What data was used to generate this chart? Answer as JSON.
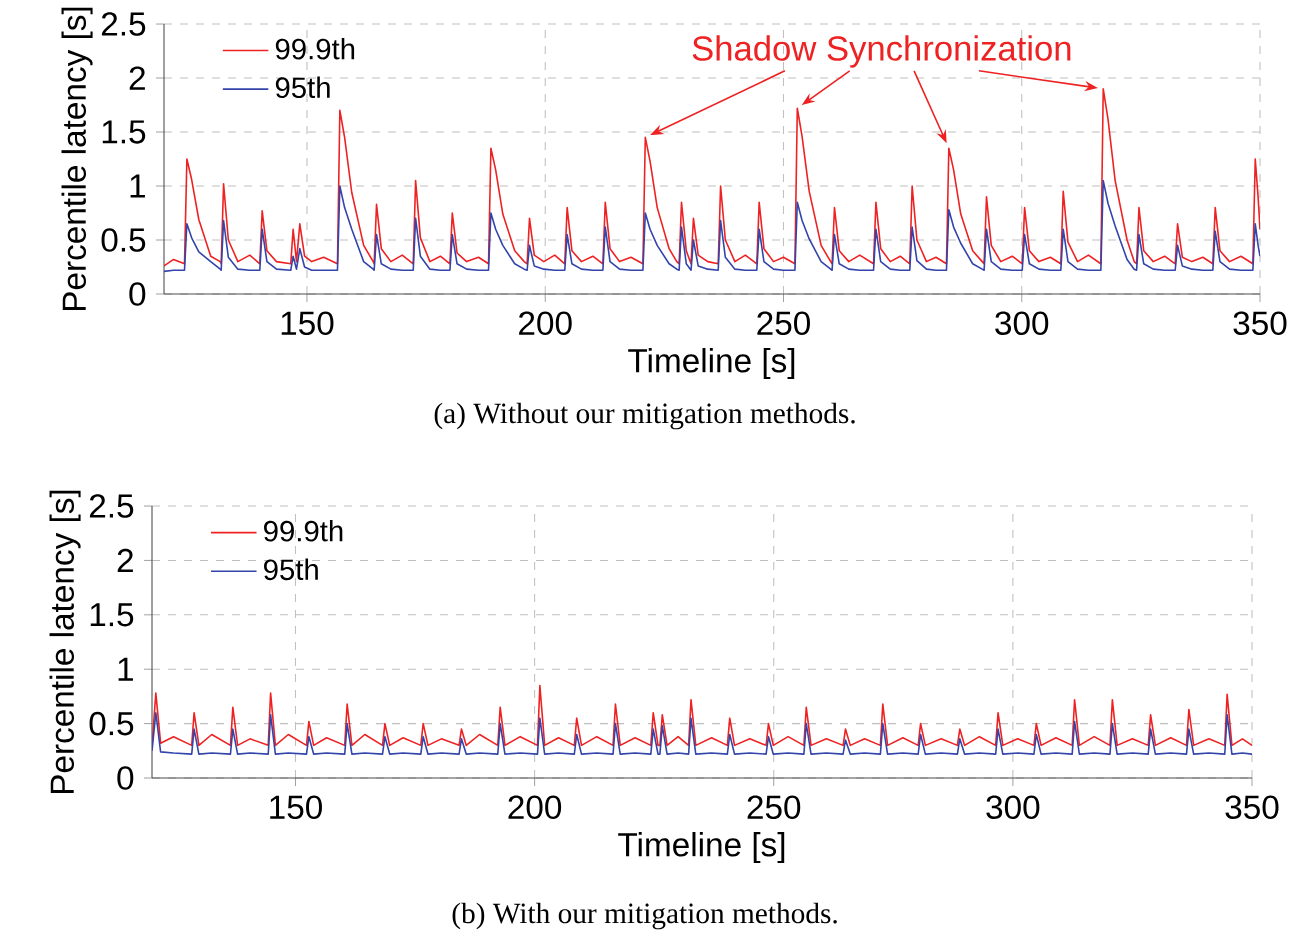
{
  "chart_data": [
    {
      "type": "line",
      "title": "(a)  Without our mitigation methods.",
      "xlabel": "Timeline [s]",
      "ylabel": "Percentile latency [s]",
      "xlim": [
        120,
        350
      ],
      "ylim": [
        0,
        2.5
      ],
      "xticks": [
        150,
        200,
        250,
        300,
        350
      ],
      "yticks": [
        0,
        0.5,
        1,
        1.5,
        2,
        2.5
      ],
      "grid": true,
      "legend": "top left",
      "annotations": [
        "Shadow Synchronization"
      ],
      "x": [
        120,
        122,
        124.3,
        124.8,
        125.8,
        127.3,
        129.8,
        131.8,
        132.0,
        132.5,
        133.5,
        135.5,
        138,
        140.1,
        140.6,
        141.6,
        143.6,
        146.6,
        147.1,
        147.8,
        148.5,
        149.5,
        151,
        153.5,
        156.4,
        156.9,
        157.9,
        159.4,
        161.9,
        163.9,
        164.1,
        164.6,
        165.6,
        167.6,
        170,
        172.3,
        172.8,
        173.8,
        175.8,
        178,
        180.0,
        180.5,
        181.5,
        183.5,
        186,
        188.1,
        188.6,
        189.6,
        191.1,
        193.6,
        195.6,
        196.2,
        196.7,
        197.7,
        199.7,
        202,
        204.1,
        204.6,
        205.6,
        207.6,
        210,
        212.1,
        212.6,
        213.6,
        215.6,
        218,
        220.5,
        221.0,
        222.0,
        223.5,
        226,
        227.6,
        228.1,
        228.6,
        229.6,
        230.6,
        231.1,
        232.1,
        234.1,
        236.3,
        236.8,
        237.8,
        239.8,
        242,
        244.4,
        244.9,
        245.9,
        247.9,
        250,
        252.4,
        252.9,
        253.9,
        255.4,
        257.9,
        259.9,
        260.2,
        260.7,
        261.7,
        263.7,
        266,
        268.9,
        269.4,
        270.4,
        272.4,
        274.5,
        276.5,
        277.0,
        278.0,
        280.0,
        282,
        284.2,
        284.7,
        285.7,
        287.2,
        289.7,
        291.7,
        292.1,
        292.6,
        293.6,
        295.6,
        298,
        300.1,
        300.6,
        301.6,
        303.6,
        306,
        308.2,
        308.7,
        309.7,
        311.7,
        314,
        316.6,
        317.1,
        318.1,
        319.6,
        322.1,
        323.6,
        324.1,
        324.6,
        325.6,
        327.6,
        330,
        332.2,
        332.7,
        333.7,
        335.7,
        338,
        340.1,
        340.6,
        341.6,
        343.6,
        346,
        348.5,
        349.0,
        349.6,
        350
      ],
      "series": [
        {
          "name": "99.9th",
          "color": "#ee2222",
          "values": [
            0.26,
            0.32,
            0.28,
            1.25,
            1.06,
            0.69,
            0.35,
            0.3,
            0.28,
            1.02,
            0.5,
            0.3,
            0.36,
            0.28,
            0.77,
            0.4,
            0.3,
            0.28,
            0.6,
            0.3,
            0.65,
            0.35,
            0.3,
            0.34,
            0.28,
            1.7,
            1.45,
            0.94,
            0.45,
            0.3,
            0.28,
            0.83,
            0.42,
            0.3,
            0.36,
            0.28,
            1.05,
            0.52,
            0.3,
            0.35,
            0.28,
            0.75,
            0.38,
            0.3,
            0.34,
            0.28,
            1.35,
            1.15,
            0.74,
            0.4,
            0.3,
            0.28,
            0.7,
            0.36,
            0.3,
            0.36,
            0.28,
            0.8,
            0.4,
            0.3,
            0.35,
            0.28,
            0.85,
            0.42,
            0.3,
            0.34,
            0.28,
            1.45,
            1.23,
            0.8,
            0.42,
            0.3,
            0.28,
            0.85,
            0.4,
            0.28,
            0.7,
            0.36,
            0.3,
            0.28,
            1.0,
            0.5,
            0.3,
            0.36,
            0.28,
            0.85,
            0.42,
            0.3,
            0.34,
            0.28,
            1.72,
            1.46,
            0.95,
            0.45,
            0.3,
            0.28,
            0.8,
            0.4,
            0.3,
            0.36,
            0.28,
            0.85,
            0.42,
            0.3,
            0.35,
            0.28,
            1.0,
            0.5,
            0.3,
            0.34,
            0.28,
            1.35,
            1.15,
            0.74,
            0.4,
            0.3,
            0.28,
            0.9,
            0.45,
            0.3,
            0.35,
            0.28,
            0.8,
            0.4,
            0.3,
            0.34,
            0.28,
            0.95,
            0.48,
            0.3,
            0.36,
            0.28,
            1.9,
            1.62,
            1.05,
            0.5,
            0.3,
            0.28,
            0.8,
            0.4,
            0.3,
            0.35,
            0.28,
            0.65,
            0.34,
            0.3,
            0.34,
            0.28,
            0.8,
            0.4,
            0.3,
            0.35,
            0.28,
            1.25,
            0.9,
            0.6
          ]
        },
        {
          "name": "95th",
          "color": "#3344aa",
          "values": [
            0.21,
            0.22,
            0.22,
            0.65,
            0.52,
            0.39,
            0.3,
            0.23,
            0.22,
            0.68,
            0.34,
            0.23,
            0.22,
            0.22,
            0.6,
            0.3,
            0.23,
            0.22,
            0.35,
            0.23,
            0.42,
            0.25,
            0.22,
            0.22,
            0.22,
            1.0,
            0.8,
            0.6,
            0.3,
            0.23,
            0.22,
            0.55,
            0.28,
            0.23,
            0.22,
            0.22,
            0.7,
            0.35,
            0.23,
            0.22,
            0.22,
            0.55,
            0.28,
            0.23,
            0.22,
            0.22,
            0.75,
            0.6,
            0.45,
            0.28,
            0.23,
            0.22,
            0.45,
            0.26,
            0.23,
            0.22,
            0.22,
            0.55,
            0.28,
            0.23,
            0.22,
            0.22,
            0.62,
            0.3,
            0.23,
            0.22,
            0.22,
            0.75,
            0.6,
            0.45,
            0.28,
            0.23,
            0.22,
            0.62,
            0.28,
            0.22,
            0.5,
            0.26,
            0.23,
            0.22,
            0.68,
            0.34,
            0.23,
            0.22,
            0.22,
            0.6,
            0.3,
            0.23,
            0.22,
            0.22,
            0.85,
            0.68,
            0.51,
            0.3,
            0.23,
            0.22,
            0.55,
            0.28,
            0.23,
            0.22,
            0.22,
            0.6,
            0.3,
            0.23,
            0.22,
            0.22,
            0.62,
            0.31,
            0.23,
            0.22,
            0.22,
            0.78,
            0.62,
            0.47,
            0.28,
            0.23,
            0.22,
            0.6,
            0.3,
            0.23,
            0.22,
            0.22,
            0.55,
            0.28,
            0.23,
            0.22,
            0.22,
            0.6,
            0.3,
            0.23,
            0.22,
            0.22,
            1.05,
            0.84,
            0.63,
            0.32,
            0.23,
            0.22,
            0.55,
            0.28,
            0.23,
            0.22,
            0.22,
            0.45,
            0.26,
            0.23,
            0.22,
            0.22,
            0.58,
            0.3,
            0.23,
            0.22,
            0.22,
            0.65,
            0.45,
            0.35
          ]
        }
      ]
    },
    {
      "type": "line",
      "title": "(b)  With our mitigation methods.",
      "xlabel": "Timeline [s]",
      "ylabel": "Percentile latency [s]",
      "xlim": [
        120,
        350
      ],
      "ylim": [
        0,
        2.5
      ],
      "xticks": [
        150,
        200,
        250,
        300,
        350
      ],
      "yticks": [
        0,
        0.5,
        1,
        1.5,
        2,
        2.5
      ],
      "grid": true,
      "legend": "top left",
      "x": [
        120,
        120.8,
        121.8,
        124.5,
        128.3,
        128.8,
        129.8,
        132.5,
        136.4,
        136.9,
        137.9,
        140.5,
        144.3,
        144.8,
        145.8,
        148.5,
        152.3,
        152.8,
        153.8,
        156.5,
        160.3,
        160.8,
        161.8,
        164.5,
        168.2,
        168.7,
        169.7,
        172.5,
        176.2,
        176.7,
        177.7,
        180.5,
        184.2,
        184.7,
        185.7,
        188.5,
        192.3,
        192.8,
        193.8,
        197,
        200.6,
        201.1,
        202.1,
        205,
        208.3,
        208.8,
        209.8,
        213,
        216.4,
        216.9,
        217.9,
        221,
        224.3,
        224.8,
        225.8,
        226.2,
        226.7,
        227.7,
        230,
        232.2,
        232.7,
        233.7,
        237,
        240.3,
        240.8,
        241.8,
        245,
        248.4,
        248.9,
        249.9,
        253,
        256.3,
        256.8,
        257.8,
        261,
        264.5,
        265.0,
        266.0,
        269,
        272.3,
        272.8,
        273.8,
        277,
        280.2,
        280.7,
        281.7,
        285,
        288.4,
        288.9,
        289.9,
        293,
        296.4,
        296.9,
        297.9,
        301,
        304.4,
        304.9,
        305.9,
        309,
        312.4,
        312.9,
        313.9,
        317,
        320.3,
        320.8,
        321.8,
        325,
        328.3,
        328.8,
        329.8,
        333,
        336.3,
        336.8,
        337.8,
        341,
        344.3,
        344.8,
        345.8,
        348,
        350
      ],
      "series": [
        {
          "name": "99.9th",
          "color": "#ee2222",
          "values": [
            0.3,
            0.78,
            0.32,
            0.38,
            0.3,
            0.6,
            0.3,
            0.4,
            0.3,
            0.65,
            0.3,
            0.36,
            0.3,
            0.78,
            0.3,
            0.4,
            0.3,
            0.52,
            0.3,
            0.37,
            0.3,
            0.68,
            0.3,
            0.4,
            0.3,
            0.5,
            0.3,
            0.37,
            0.3,
            0.5,
            0.3,
            0.36,
            0.3,
            0.45,
            0.3,
            0.4,
            0.3,
            0.65,
            0.3,
            0.38,
            0.3,
            0.85,
            0.3,
            0.37,
            0.3,
            0.55,
            0.3,
            0.38,
            0.3,
            0.68,
            0.3,
            0.37,
            0.3,
            0.6,
            0.3,
            0.3,
            0.58,
            0.3,
            0.38,
            0.3,
            0.72,
            0.3,
            0.37,
            0.3,
            0.55,
            0.3,
            0.36,
            0.3,
            0.5,
            0.3,
            0.38,
            0.3,
            0.65,
            0.3,
            0.36,
            0.3,
            0.45,
            0.3,
            0.36,
            0.3,
            0.68,
            0.3,
            0.37,
            0.3,
            0.5,
            0.3,
            0.36,
            0.3,
            0.45,
            0.3,
            0.38,
            0.3,
            0.6,
            0.3,
            0.36,
            0.3,
            0.5,
            0.3,
            0.37,
            0.3,
            0.72,
            0.3,
            0.38,
            0.3,
            0.72,
            0.3,
            0.36,
            0.3,
            0.58,
            0.3,
            0.37,
            0.3,
            0.63,
            0.3,
            0.36,
            0.3,
            0.77,
            0.3,
            0.36,
            0.3
          ]
        },
        {
          "name": "95th",
          "color": "#3344aa",
          "values": [
            0.25,
            0.6,
            0.24,
            0.23,
            0.22,
            0.45,
            0.22,
            0.23,
            0.22,
            0.45,
            0.22,
            0.23,
            0.22,
            0.58,
            0.22,
            0.23,
            0.22,
            0.38,
            0.22,
            0.23,
            0.22,
            0.5,
            0.22,
            0.23,
            0.22,
            0.38,
            0.22,
            0.23,
            0.22,
            0.38,
            0.22,
            0.23,
            0.22,
            0.36,
            0.22,
            0.23,
            0.22,
            0.5,
            0.22,
            0.23,
            0.22,
            0.55,
            0.22,
            0.23,
            0.22,
            0.4,
            0.22,
            0.23,
            0.22,
            0.5,
            0.22,
            0.23,
            0.22,
            0.45,
            0.22,
            0.22,
            0.48,
            0.22,
            0.23,
            0.22,
            0.55,
            0.22,
            0.23,
            0.22,
            0.4,
            0.22,
            0.23,
            0.22,
            0.38,
            0.22,
            0.23,
            0.22,
            0.5,
            0.22,
            0.23,
            0.22,
            0.35,
            0.22,
            0.23,
            0.22,
            0.5,
            0.22,
            0.23,
            0.22,
            0.4,
            0.22,
            0.23,
            0.22,
            0.36,
            0.22,
            0.23,
            0.22,
            0.45,
            0.22,
            0.23,
            0.22,
            0.4,
            0.22,
            0.23,
            0.22,
            0.52,
            0.22,
            0.23,
            0.22,
            0.5,
            0.22,
            0.23,
            0.22,
            0.45,
            0.22,
            0.23,
            0.22,
            0.45,
            0.22,
            0.23,
            0.22,
            0.58,
            0.22,
            0.23,
            0.22
          ]
        }
      ]
    }
  ]
}
